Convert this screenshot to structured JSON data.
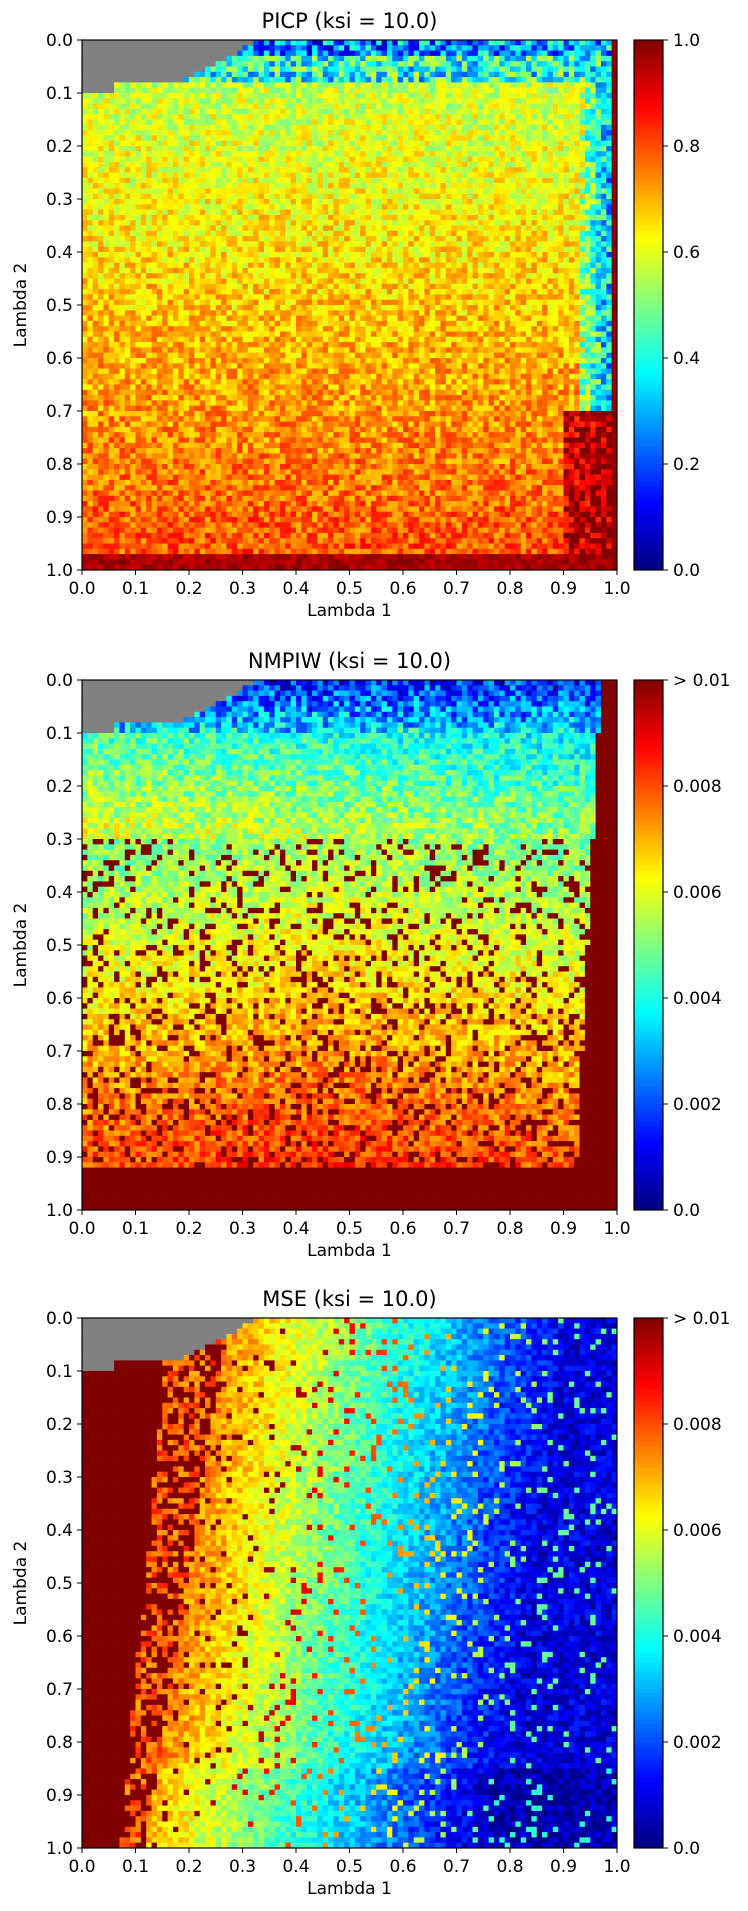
{
  "chart_data": [
    {
      "type": "heatmap",
      "title": "PICP  (ksi = 10.0)",
      "xlabel": "Lambda 1",
      "ylabel": "Lambda 2",
      "xlim": [
        0.0,
        1.0
      ],
      "ylim": [
        0.0,
        1.0
      ],
      "y_inverted": true,
      "x_ticks": [
        "0.0",
        "0.1",
        "0.2",
        "0.3",
        "0.4",
        "0.5",
        "0.6",
        "0.7",
        "0.8",
        "0.9",
        "1.0"
      ],
      "y_ticks": [
        "0.0",
        "0.1",
        "0.2",
        "0.3",
        "0.4",
        "0.5",
        "0.6",
        "0.7",
        "0.8",
        "0.9",
        "1.0"
      ],
      "colormap": "jet",
      "colorbar": {
        "ticks": [
          "0.0",
          "0.2",
          "0.4",
          "0.6",
          "0.8",
          "1.0"
        ],
        "range": [
          0.0,
          1.0
        ]
      },
      "missing_color": "#808080",
      "grid": false,
      "notes": "Value grid approximated: low (red/yellow) along top rows near Lambda2=0 and near Lambda1≈0.95; mostly 0.6–0.8 interior; ~1.0 at far right column and bottom rows."
    },
    {
      "type": "heatmap",
      "title": "NMPIW  (ksi = 10.0)",
      "xlabel": "Lambda 1",
      "ylabel": "Lambda 2",
      "xlim": [
        0.0,
        1.0
      ],
      "ylim": [
        0.0,
        1.0
      ],
      "y_inverted": true,
      "x_ticks": [
        "0.0",
        "0.1",
        "0.2",
        "0.3",
        "0.4",
        "0.5",
        "0.6",
        "0.7",
        "0.8",
        "0.9",
        "1.0"
      ],
      "y_ticks": [
        "0.0",
        "0.1",
        "0.2",
        "0.3",
        "0.4",
        "0.5",
        "0.6",
        "0.7",
        "0.8",
        "0.9",
        "1.0"
      ],
      "colormap": "jet",
      "colorbar": {
        "ticks": [
          "0.0",
          "0.002",
          "0.004",
          "0.006",
          "0.008",
          "> 0.01"
        ],
        "range": [
          0.0,
          0.01
        ]
      },
      "missing_color": "#808080",
      "grid": false,
      "notes": "Blue (~0.001) at top, cyan/green in upper middle, yellow/orange lower, saturated dark red (> 0.01) along bottom band and right edge."
    },
    {
      "type": "heatmap",
      "title": "MSE  (ksi = 10.0)",
      "xlabel": "Lambda 1",
      "ylabel": "Lambda 2",
      "xlim": [
        0.0,
        1.0
      ],
      "ylim": [
        0.0,
        1.0
      ],
      "y_inverted": true,
      "x_ticks": [
        "0.0",
        "0.1",
        "0.2",
        "0.3",
        "0.4",
        "0.5",
        "0.6",
        "0.7",
        "0.8",
        "0.9",
        "1.0"
      ],
      "y_ticks": [
        "0.0",
        "0.1",
        "0.2",
        "0.3",
        "0.4",
        "0.5",
        "0.6",
        "0.7",
        "0.8",
        "0.9",
        "1.0"
      ],
      "colormap": "jet",
      "colorbar": {
        "ticks": [
          "0.0",
          "0.002",
          "0.004",
          "0.006",
          "0.008",
          "> 0.01"
        ],
        "range": [
          0.0,
          0.01
        ]
      },
      "missing_color": "#808080",
      "grid": false,
      "notes": "Saturated dark red (> 0.01) in left region (low Lambda 1), transitioning through yellow/green to blue (~0.001) at right."
    }
  ]
}
